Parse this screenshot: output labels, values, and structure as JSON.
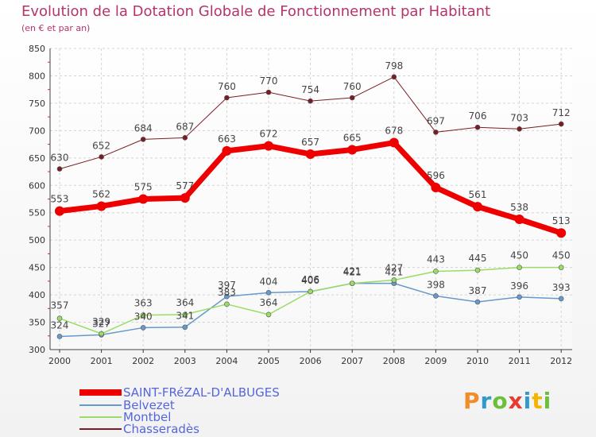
{
  "header": {
    "title": "Evolution de la Dotation Globale de Fonctionnement par Habitant",
    "subtitle": "(en € et par an)"
  },
  "logo": {
    "text": "Proxiti",
    "colors": [
      "#f28c28",
      "#3399cc",
      "#6cbf3a",
      "#e63b2e",
      "#3399cc",
      "#f5b400",
      "#6cbf3a"
    ]
  },
  "chart_data": {
    "type": "line",
    "x": [
      "2000",
      "2001",
      "2002",
      "2003",
      "2004",
      "2005",
      "2006",
      "2007",
      "2008",
      "2009",
      "2010",
      "2011",
      "2012"
    ],
    "ylim": [
      300,
      850
    ],
    "yticks": [
      300,
      350,
      400,
      450,
      500,
      550,
      600,
      650,
      700,
      750,
      800,
      850
    ],
    "grid": true,
    "legend_position": "bottom-left",
    "series": [
      {
        "name": "SAINT-FRéZAL-D'ALBUGES",
        "color": "#ee0000",
        "width": 7,
        "values": [
          553,
          562,
          575,
          577,
          663,
          672,
          657,
          665,
          678,
          596,
          561,
          538,
          513
        ]
      },
      {
        "name": "Belvezet",
        "color": "#6699cc",
        "width": 1.5,
        "values": [
          324,
          327,
          340,
          341,
          397,
          404,
          406,
          421,
          421,
          398,
          387,
          396,
          393
        ]
      },
      {
        "name": "Montbel",
        "color": "#99dd66",
        "width": 1.5,
        "values": [
          357,
          329,
          363,
          364,
          383,
          364,
          406,
          421,
          427,
          443,
          445,
          450,
          450
        ]
      },
      {
        "name": "Chasseradès",
        "color": "#7a1c24",
        "width": 1,
        "values": [
          630,
          652,
          684,
          687,
          760,
          770,
          754,
          760,
          798,
          697,
          706,
          703,
          712
        ]
      }
    ]
  }
}
